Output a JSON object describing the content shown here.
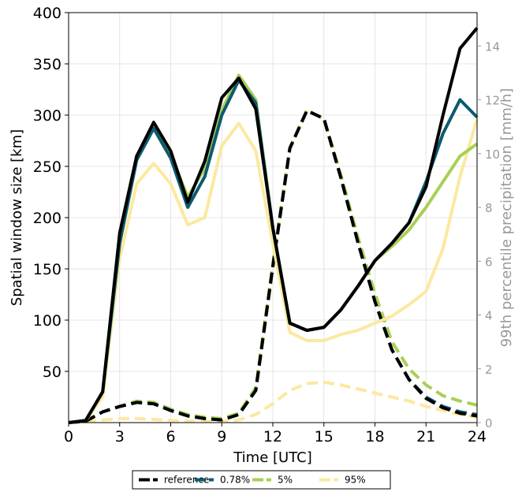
{
  "chart_data": {
    "type": "line",
    "xlabel": "Time [UTC]",
    "ylabel": "Spatial window size [km]",
    "y2label": "99th percentile precipitation [mm/h]",
    "xlim": [
      0,
      24
    ],
    "ylim": [
      0,
      400
    ],
    "y2lim": [
      0,
      15.24
    ],
    "x_ticks": [
      0,
      3,
      6,
      9,
      12,
      15,
      18,
      21,
      24
    ],
    "y_ticks": [
      50,
      100,
      150,
      200,
      250,
      300,
      350,
      400
    ],
    "y2_ticks": [
      0,
      2,
      4,
      6,
      8,
      10,
      12,
      14
    ],
    "grid": true,
    "legend_position": "bottom",
    "x": [
      0,
      1,
      2,
      3,
      4,
      5,
      6,
      7,
      8,
      9,
      10,
      11,
      12,
      13,
      14,
      15,
      16,
      17,
      18,
      19,
      20,
      21,
      22,
      23,
      24
    ],
    "series": [
      {
        "name": "reference",
        "color": "#000000",
        "window_km": [
          0,
          2,
          30,
          185,
          260,
          293,
          265,
          215,
          255,
          317,
          336,
          306,
          190,
          97,
          90,
          93,
          110,
          133,
          158,
          175,
          195,
          230,
          300,
          365,
          385
        ],
        "precip_mmh": [
          0,
          0.05,
          0.4,
          0.6,
          0.75,
          0.7,
          0.45,
          0.25,
          0.15,
          0.1,
          0.3,
          1.2,
          5.8,
          10.2,
          11.6,
          11.3,
          9.1,
          6.7,
          4.5,
          2.7,
          1.6,
          0.9,
          0.55,
          0.35,
          0.25
        ]
      },
      {
        "name": "0.78%",
        "color": "#0b5b70",
        "window_km": [
          0,
          2,
          30,
          175,
          256,
          287,
          258,
          210,
          240,
          300,
          334,
          312,
          190,
          97,
          90,
          93,
          110,
          133,
          158,
          175,
          195,
          235,
          282,
          315,
          298
        ],
        "precip_mmh": [
          0,
          0.05,
          0.4,
          0.6,
          0.75,
          0.7,
          0.45,
          0.25,
          0.15,
          0.1,
          0.3,
          1.2,
          5.8,
          10.2,
          11.6,
          11.3,
          9.1,
          6.7,
          4.5,
          2.7,
          1.6,
          0.95,
          0.6,
          0.4,
          0.3
        ]
      },
      {
        "name": "5%",
        "color": "#a9cf54",
        "window_km": [
          0,
          2,
          30,
          175,
          260,
          290,
          262,
          220,
          248,
          305,
          339,
          315,
          190,
          97,
          90,
          93,
          110,
          133,
          158,
          172,
          188,
          210,
          235,
          260,
          272
        ],
        "precip_mmh": [
          0,
          0.05,
          0.4,
          0.6,
          0.8,
          0.75,
          0.5,
          0.3,
          0.2,
          0.15,
          0.35,
          1.3,
          5.9,
          10.2,
          11.6,
          11.3,
          9.2,
          6.9,
          4.8,
          3.0,
          2.0,
          1.4,
          1.0,
          0.8,
          0.65
        ]
      },
      {
        "name": "95%",
        "color": "#fbe9a0",
        "window_km": [
          0,
          2,
          25,
          160,
          233,
          253,
          233,
          193,
          200,
          270,
          292,
          265,
          175,
          88,
          80,
          80,
          86,
          90,
          97,
          104,
          115,
          128,
          170,
          240,
          296
        ],
        "precip_mmh": [
          0,
          0.05,
          0.1,
          0.15,
          0.15,
          0.12,
          0.08,
          0.05,
          0.05,
          0.05,
          0.1,
          0.3,
          0.7,
          1.2,
          1.45,
          1.5,
          1.4,
          1.25,
          1.1,
          0.95,
          0.8,
          0.6,
          0.45,
          0.3,
          0.2
        ]
      }
    ]
  },
  "colors": {
    "grid": "#e4e4e4",
    "axis": "#000000",
    "right_axis": "#999999"
  }
}
